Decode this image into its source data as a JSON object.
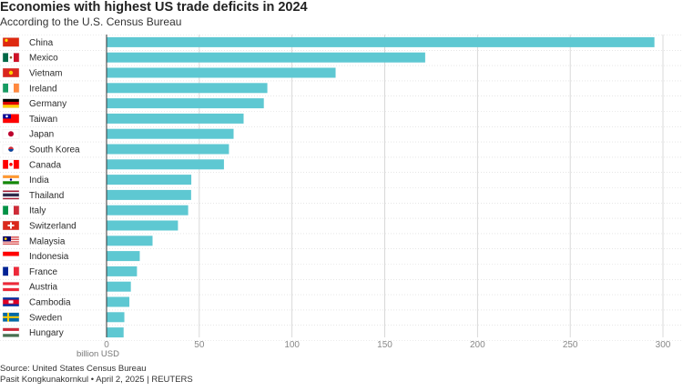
{
  "title": "Economies with highest US trade deficits in 2024",
  "subtitle": "According to the U.S. Census Bureau",
  "source": "Source: United States Census Bureau",
  "credit": "Pasit Kongkunakornkul • April 2, 2025 | REUTERS",
  "chart_data": {
    "type": "bar",
    "orientation": "horizontal",
    "title": "Economies with highest US trade deficits in 2024",
    "subtitle": "According to the U.S. Census Bureau",
    "xlabel": "billion USD",
    "ylabel": "",
    "xlim": [
      0,
      300
    ],
    "xticks": [
      0,
      50,
      100,
      150,
      200,
      250,
      300
    ],
    "grid": true,
    "color": "#5ec8d2",
    "categories": [
      "China",
      "Mexico",
      "Vietnam",
      "Ireland",
      "Germany",
      "Taiwan",
      "Japan",
      "South Korea",
      "Canada",
      "India",
      "Thailand",
      "Italy",
      "Switzerland",
      "Malaysia",
      "Indonesia",
      "France",
      "Austria",
      "Cambodia",
      "Sweden",
      "Hungary"
    ],
    "values": [
      295.4,
      171.8,
      123.5,
      86.7,
      84.8,
      73.9,
      68.5,
      66.0,
      63.3,
      45.7,
      45.6,
      44.0,
      38.5,
      24.8,
      17.9,
      16.4,
      13.1,
      12.3,
      9.6,
      9.2
    ],
    "flags": [
      "china-flag",
      "mexico-flag",
      "vietnam-flag",
      "ireland-flag",
      "germany-flag",
      "taiwan-flag",
      "japan-flag",
      "south-korea-flag",
      "canada-flag",
      "india-flag",
      "thailand-flag",
      "italy-flag",
      "switzerland-flag",
      "malaysia-flag",
      "indonesia-flag",
      "france-flag",
      "austria-flag",
      "cambodia-flag",
      "sweden-flag",
      "hungary-flag"
    ]
  }
}
